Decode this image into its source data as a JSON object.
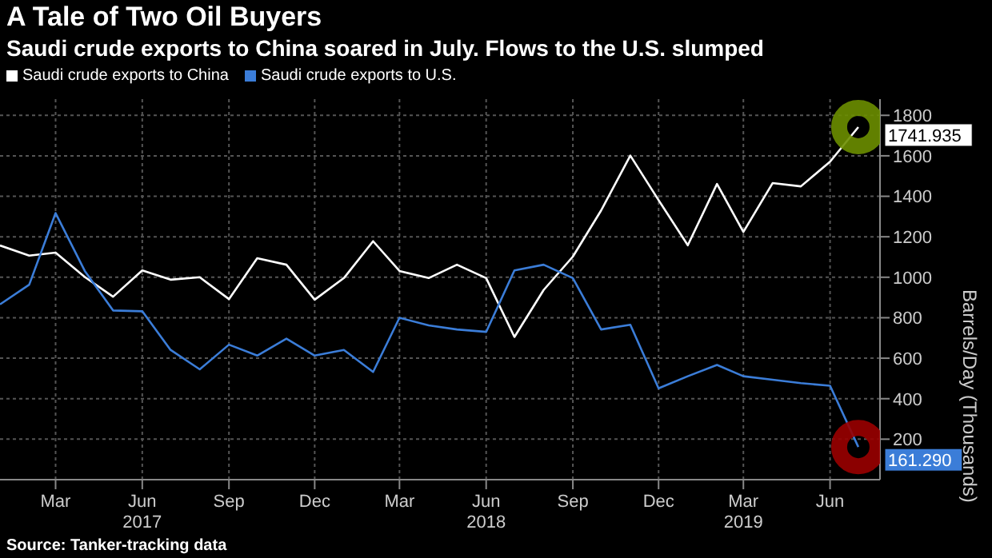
{
  "chart_data": {
    "type": "line",
    "title": "A Tale of Two Oil Buyers",
    "subtitle": "Saudi crude exports to China soared in July. Flows to the U.S. slumped",
    "ylabel": "Barrels/Day (Thousands)",
    "annotations": [
      "Source: Tanker-tracking data"
    ],
    "x": [
      "2017-01",
      "2017-02",
      "2017-03",
      "2017-04",
      "2017-05",
      "2017-06",
      "2017-07",
      "2017-08",
      "2017-09",
      "2017-10",
      "2017-11",
      "2017-12",
      "2018-01",
      "2018-02",
      "2018-03",
      "2018-04",
      "2018-05",
      "2018-06",
      "2018-07",
      "2018-08",
      "2018-09",
      "2018-10",
      "2018-11",
      "2018-12",
      "2019-01",
      "2019-02",
      "2019-03",
      "2019-04",
      "2019-05",
      "2019-06",
      "2019-07"
    ],
    "series": [
      {
        "name": "Saudi crude exports to China",
        "color": "#ffffff",
        "values": [
          1157,
          1107,
          1122,
          1001,
          904,
          1034,
          988,
          1000,
          892,
          1094,
          1062,
          889,
          996,
          1178,
          1031,
          996,
          1062,
          996,
          705,
          937,
          1102,
          1330,
          1601,
          1381,
          1158,
          1461,
          1224,
          1465,
          1449,
          1571,
          1741.935
        ],
        "value_labels": [
          null,
          null,
          null,
          null,
          null,
          null,
          null,
          null,
          null,
          null,
          null,
          null,
          null,
          null,
          null,
          null,
          null,
          null,
          null,
          null,
          null,
          null,
          null,
          null,
          null,
          null,
          null,
          null,
          null,
          null,
          "1741.935"
        ]
      },
      {
        "name": "Saudi crude exports to U.S.",
        "color": "#3b7dd8",
        "values": [
          866,
          963,
          1317,
          1031,
          836,
          832,
          641,
          545,
          667,
          613,
          697,
          613,
          641,
          532,
          800,
          762,
          742,
          730,
          1034,
          1062,
          996,
          742,
          765,
          451,
          511,
          567,
          511,
          494,
          477,
          464,
          161.29
        ],
        "value_labels": [
          null,
          null,
          null,
          null,
          null,
          null,
          null,
          null,
          null,
          null,
          null,
          null,
          null,
          null,
          null,
          null,
          null,
          null,
          null,
          null,
          null,
          null,
          null,
          null,
          null,
          null,
          null,
          null,
          null,
          null,
          "161.290"
        ]
      }
    ],
    "xlim": [
      "2017-01-01",
      "2019-07-24"
    ],
    "xticks": [
      {
        "value": "2017-03",
        "label": "Mar"
      },
      {
        "value": "2017-06",
        "label": "Jun\n2017"
      },
      {
        "value": "2017-09",
        "label": "Sep"
      },
      {
        "value": "2017-12",
        "label": "Dec"
      },
      {
        "value": "2018-03",
        "label": "Mar"
      },
      {
        "value": "2018-06",
        "label": "Jun\n2018"
      },
      {
        "value": "2018-09",
        "label": "Sep"
      },
      {
        "value": "2018-12",
        "label": "Dec"
      },
      {
        "value": "2019-03",
        "label": "Mar\n2019"
      },
      {
        "value": "2019-06",
        "label": "Jun"
      }
    ],
    "ylim": [
      0,
      1880
    ],
    "yticks": [
      200,
      400,
      600,
      800,
      1000,
      1200,
      1400,
      1600,
      1800
    ],
    "grid": true,
    "legend": "top left",
    "marker": "none",
    "line_style": "solid"
  }
}
